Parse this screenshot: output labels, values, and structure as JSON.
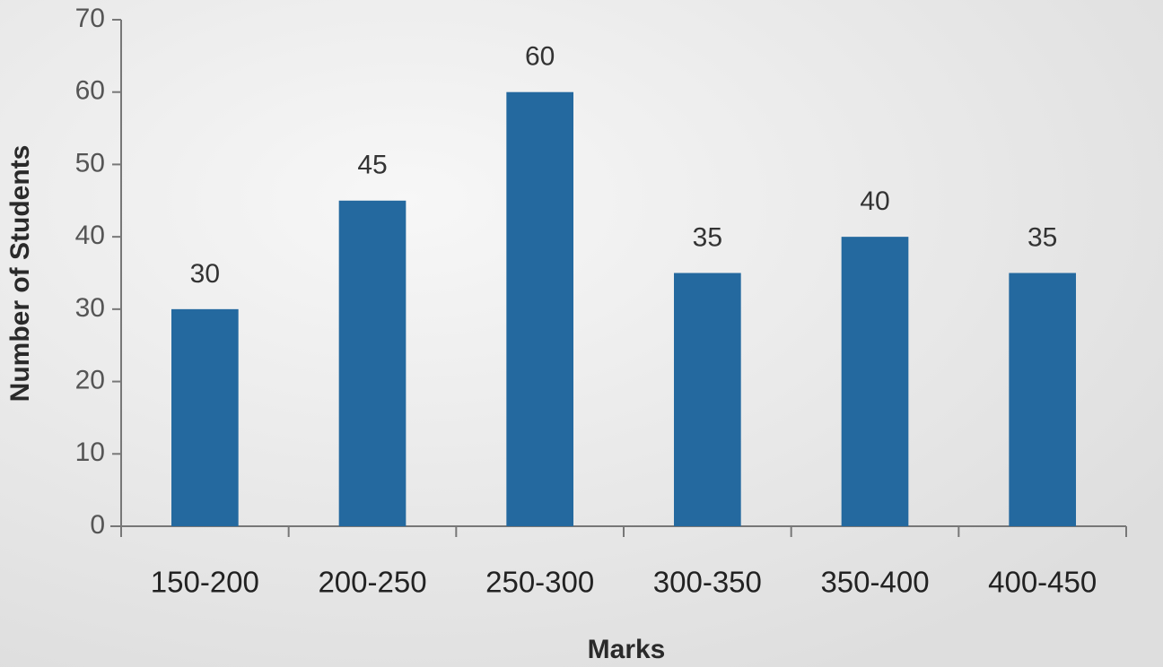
{
  "chart_data": {
    "type": "bar",
    "x_label": "Marks",
    "y_label": "Number of Students",
    "categories": [
      "150-200",
      "200-250",
      "250-300",
      "300-350",
      "350-400",
      "400-450"
    ],
    "values": [
      30,
      45,
      60,
      35,
      40,
      35
    ],
    "color": "#24699f",
    "ylim": [
      0,
      70
    ],
    "yticks": [
      0,
      10,
      20,
      30,
      40,
      50,
      60,
      70
    ],
    "grid": false
  }
}
